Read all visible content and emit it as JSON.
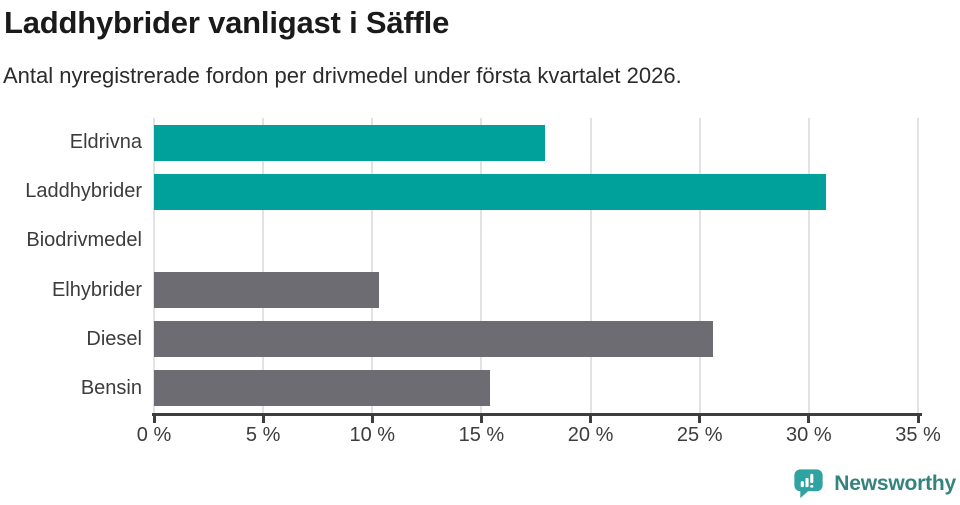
{
  "header": {
    "title": "Laddhybrider vanligast i Säffle",
    "subtitle": "Antal nyregistrerade fordon per drivmedel under första kvartalet 2026."
  },
  "chart_data": {
    "type": "bar",
    "orientation": "horizontal",
    "title": "Laddhybrider vanligast i Säffle",
    "subtitle": "Antal nyregistrerade fordon per drivmedel under första kvartalet 2026.",
    "categories": [
      "Eldrivna",
      "Laddhybrider",
      "Biodrivmedel",
      "Elhybrider",
      "Diesel",
      "Bensin"
    ],
    "values": [
      17.9,
      30.8,
      0,
      10.3,
      25.6,
      15.4
    ],
    "unit": "%",
    "highlighted": [
      true,
      true,
      false,
      false,
      false,
      false
    ],
    "xlabel": "",
    "ylabel": "",
    "xlim": [
      0,
      35
    ],
    "xticks": [
      0,
      5,
      10,
      15,
      20,
      25,
      30,
      35
    ],
    "xtick_suffix": " %",
    "grid": true,
    "legend": "none"
  },
  "colors": {
    "highlight_bar": "#00a19b",
    "default_bar": "#6d6c73",
    "gridline": "#e2e2e2",
    "axis": "#3e3e3e",
    "logo_teal": "#2fa3a1",
    "brand_text": "#35837f"
  },
  "footer": {
    "brand": "Newsworthy"
  }
}
